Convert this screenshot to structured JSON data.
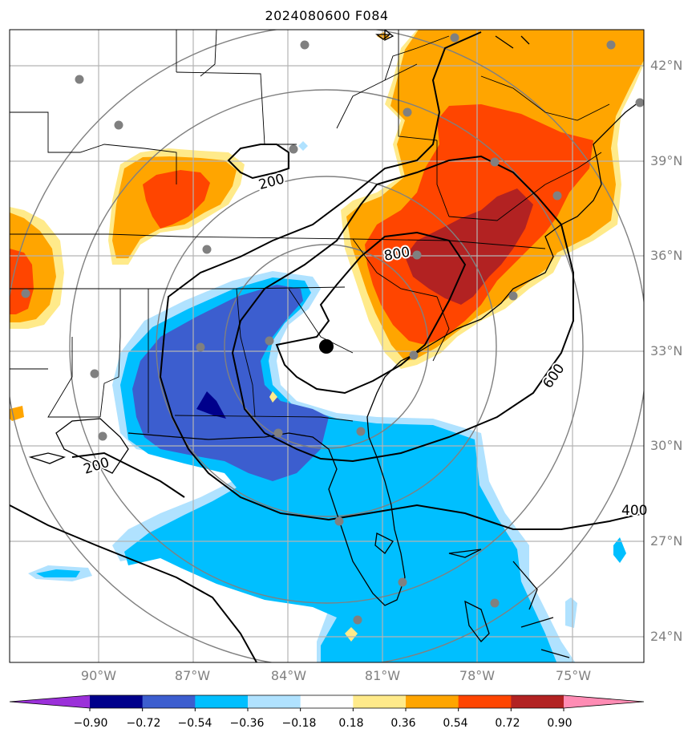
{
  "title": "2024080600 F084",
  "lat_labels": [
    "42°N",
    "39°N",
    "36°N",
    "33°N",
    "30°N",
    "27°N",
    "24°N"
  ],
  "lon_labels": [
    "90°W",
    "87°W",
    "84°W",
    "81°W",
    "78°W",
    "75°W"
  ],
  "contour_labels": [
    "200",
    "800",
    "600",
    "200",
    "400"
  ],
  "colorbar": {
    "ticks": [
      "−0.90",
      "−0.72",
      "−0.54",
      "−0.36",
      "−0.18",
      "0.18",
      "0.36",
      "0.54",
      "0.72",
      "0.90"
    ],
    "colors": [
      "#9b30d9",
      "#00008b",
      "#3c5ecf",
      "#00bfff",
      "#b0e2ff",
      "#ffffff",
      "#ffea8a",
      "#ffa500",
      "#ff4500",
      "#b22222",
      "#ff8cb4"
    ]
  },
  "colors": {
    "pos1": "#ffea8a",
    "pos2": "#ffa500",
    "pos3": "#ff4500",
    "pos4": "#b22222",
    "neg1": "#b0e2ff",
    "neg2": "#00bfff",
    "neg3": "#3c5ecf",
    "neg4": "#00008b",
    "grid": "#b4b4b4",
    "ring": "#808080"
  }
}
